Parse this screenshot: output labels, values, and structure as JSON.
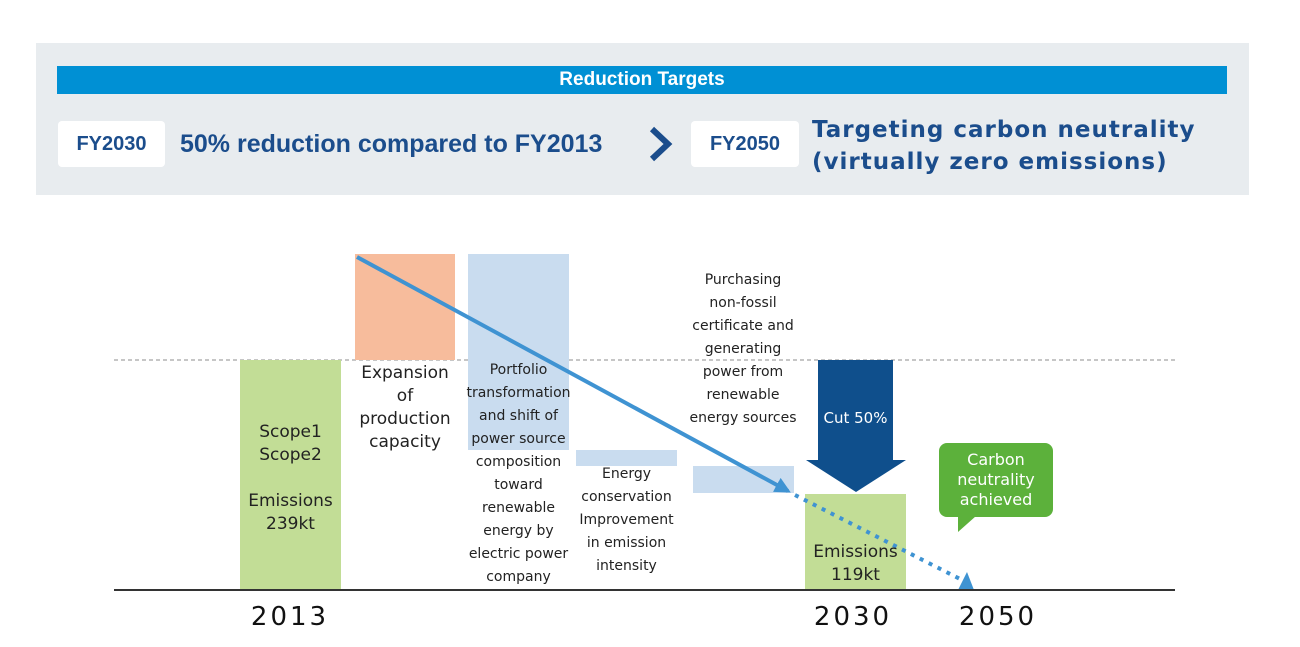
{
  "banner": {
    "heading": "Reduction Targets",
    "fy2030_label": "FY2030",
    "fy2030_goal": "50% reduction compared to FY2013",
    "fy2050_label": "FY2050",
    "fy2050_goal_line1": "Targeting carbon neutrality",
    "fy2050_goal_line2": "(virtually zero emissions)"
  },
  "diagram": {
    "bar_2013": {
      "line1": "Scope1",
      "line2": "Scope2",
      "line3": "Emissions",
      "line4": "239kt",
      "value_kt": 239
    },
    "expansion": {
      "line1": "Expansion",
      "line2": "of",
      "line3": "production",
      "line4": "capacity"
    },
    "portfolio": [
      "Portfolio",
      "transformation",
      "and shift of",
      "power source",
      "composition",
      "toward",
      "renewable",
      "energy by",
      "electric power",
      "company"
    ],
    "energy": [
      "Energy",
      "conservation",
      "Improvement",
      "in emission",
      "intensity"
    ],
    "purchasing": [
      "Purchasing",
      "non-fossil",
      "certificate and",
      "generating",
      "power from",
      "renewable",
      "energy sources"
    ],
    "cut_label": "Cut 50%",
    "bar_2030": {
      "line1": "Emissions",
      "line2": "119kt",
      "value_kt": 119
    },
    "bubble": {
      "line1": "Carbon",
      "line2": "neutrality",
      "line3": "achieved"
    },
    "years": [
      "2013",
      "2030",
      "2050"
    ]
  },
  "colors": {
    "banner_bg": "#e8ecef",
    "banner_head": "#0090d4",
    "navy_text": "#1b4d8c",
    "green_bar": "#c2dd96",
    "orange_block": "#f7bc9c",
    "light_blue_block": "#c9dcef",
    "dark_blue_arrow": "#0f4f8c",
    "trend_arrow": "#3f93d2",
    "bubble_green": "#5cb13b"
  }
}
